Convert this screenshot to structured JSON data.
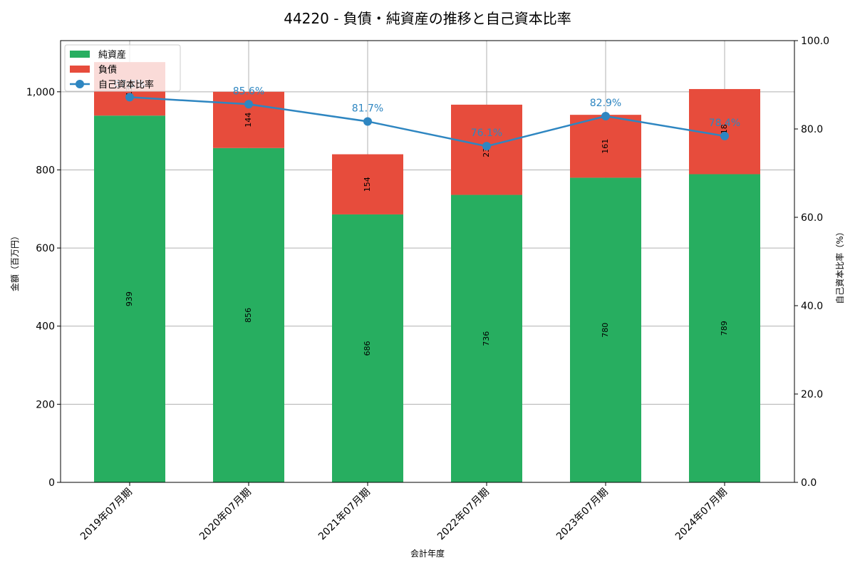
{
  "chart_data": {
    "type": "bar",
    "title": "44220 - 負債・純資産の推移と自己資本比率",
    "xlabel": "会計年度",
    "ylabel": "金額（百万円）",
    "y2label": "自己資本比率（%）",
    "ylim": [
      0,
      1131
    ],
    "y2lim": [
      0,
      100
    ],
    "yticks": [
      0,
      200,
      400,
      600,
      800,
      1000
    ],
    "ytick_labels": [
      "0",
      "200",
      "400",
      "600",
      "800",
      "1,000"
    ],
    "y2ticks": [
      0,
      20,
      40,
      60,
      80,
      100
    ],
    "y2tick_labels": [
      "0.0",
      "20.0",
      "40.0",
      "60.0",
      "80.0",
      "100.0"
    ],
    "grid": true,
    "legend_position": "upper left",
    "stacked": true,
    "categories": [
      "2019年07月期",
      "2020年07月期",
      "2021年07月期",
      "2022年07月期",
      "2023年07月期",
      "2024年07月期"
    ],
    "series": [
      {
        "name": "純資産",
        "type": "bar",
        "color": "#27ae60",
        "values": [
          939,
          856,
          686,
          736,
          780,
          789
        ],
        "labels": [
          "939",
          "856",
          "686",
          "736",
          "780",
          "789"
        ]
      },
      {
        "name": "負債",
        "type": "bar",
        "color": "#e74c3c",
        "values": [
          137,
          144,
          154,
          231,
          161,
          218
        ],
        "labels": [
          "137",
          "144",
          "154",
          "231",
          "161",
          "218"
        ]
      },
      {
        "name": "自己資本比率",
        "type": "line",
        "axis": "right",
        "color": "#2e86c1",
        "values": [
          87.2,
          85.6,
          81.7,
          76.1,
          82.9,
          78.4
        ],
        "labels": [
          "87.2%",
          "85.6%",
          "81.7%",
          "76.1%",
          "82.9%",
          "78.4%"
        ]
      }
    ]
  }
}
